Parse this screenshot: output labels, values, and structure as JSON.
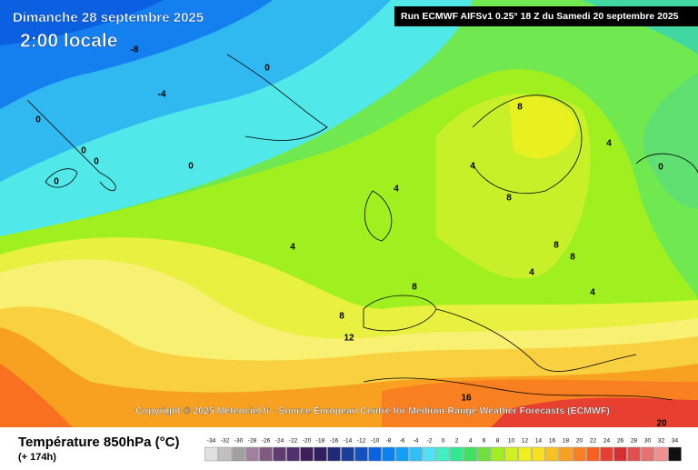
{
  "header": {
    "date": "Dimanche 28 septembre 2025",
    "time": "2:00 locale",
    "run": "Run ECMWF AIFSv1 0.25° 18 Z du Samedi 20 septembre 2025"
  },
  "map": {
    "contour_labels": [
      -8,
      0,
      -4,
      0,
      0,
      0,
      0,
      0,
      8,
      4,
      4,
      0,
      4,
      8,
      4,
      8,
      8,
      4,
      8,
      4,
      8,
      12,
      16,
      20
    ]
  },
  "copyright": "Copyright © 2025 Meteociel.fr - Source European Centre for Medium-Range Weather Forecasts (ECMWF)",
  "legend": {
    "title": "Température 850hPa (°C)",
    "lead": "(+ 174h)",
    "scale": [
      -34,
      -32,
      -30,
      -28,
      -26,
      -24,
      -22,
      -20,
      -18,
      -16,
      -14,
      -12,
      -10,
      -8,
      -6,
      -4,
      -2,
      0,
      2,
      4,
      6,
      8,
      10,
      12,
      14,
      16,
      18,
      20,
      22,
      24,
      26,
      28,
      30,
      32,
      34
    ],
    "colors": [
      "#e0e0e0",
      "#c0c0c0",
      "#a0a0a0",
      "#a080a0",
      "#805a80",
      "#603c70",
      "#50306a",
      "#40205a",
      "#302060",
      "#202878",
      "#1a3c9a",
      "#1450c0",
      "#0a64e0",
      "#0a82f0",
      "#10a0f8",
      "#30c0f8",
      "#50e0f8",
      "#40f0c0",
      "#30e890",
      "#40e060",
      "#70e040",
      "#a0f020",
      "#d0f020",
      "#f0f020",
      "#f8e020",
      "#f8c020",
      "#f8a020",
      "#f88020",
      "#f86020",
      "#e84030",
      "#d83030",
      "#e05050",
      "#e87070",
      "#f09090",
      "#101010"
    ]
  }
}
